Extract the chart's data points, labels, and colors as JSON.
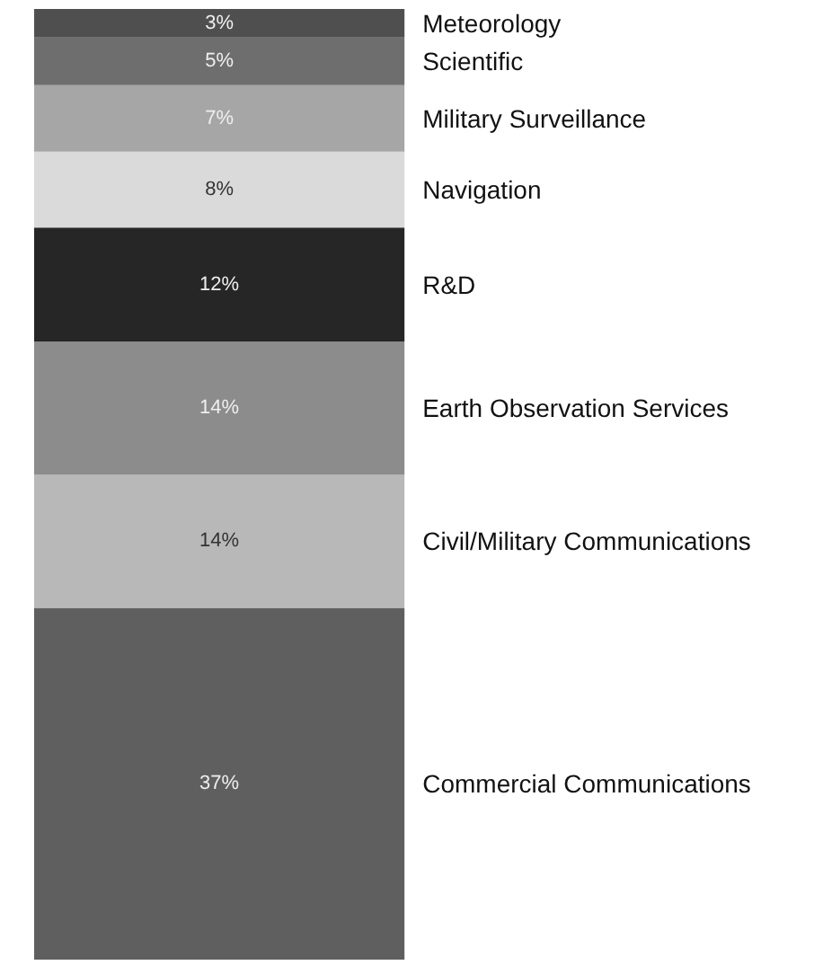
{
  "chart_data": {
    "type": "bar",
    "stacked": true,
    "relative": false,
    "categories": [
      null
    ],
    "ylim": [
      0,
      100
    ],
    "tick_labels": false,
    "series": [
      {
        "name": "Commercial Communications",
        "color": "#5f5f5f",
        "values": [
          37
        ],
        "value_labels": [
          "37%"
        ]
      },
      {
        "name": "Civil/Military Communications",
        "color": "#b8b8b8",
        "values": [
          14
        ],
        "value_labels": [
          "14%"
        ]
      },
      {
        "name": "Earth Observation Services",
        "color": "#8c8c8c",
        "values": [
          14
        ],
        "value_labels": [
          "14%"
        ]
      },
      {
        "name": "R&D",
        "color": "#262626",
        "values": [
          12
        ],
        "value_labels": [
          "12%"
        ]
      },
      {
        "name": "Navigation",
        "color": "#dadada",
        "values": [
          8
        ],
        "value_labels": [
          "8%"
        ]
      },
      {
        "name": "Military Surveillance",
        "color": "#a6a6a6",
        "values": [
          7
        ],
        "value_labels": [
          "7%"
        ]
      },
      {
        "name": "Scientific",
        "color": "#6e6e6e",
        "values": [
          5
        ],
        "value_labels": [
          "5%"
        ]
      },
      {
        "name": "Meteorology",
        "color": "#4f4f4f",
        "values": [
          3
        ],
        "value_labels": [
          "3%"
        ]
      }
    ]
  }
}
